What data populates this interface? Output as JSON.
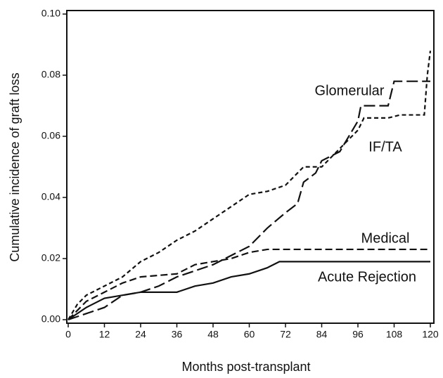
{
  "chart_data": {
    "type": "line",
    "xlabel": "Months post-transplant",
    "ylabel": "Cumulative incidence of graft loss",
    "xlim": [
      0,
      120
    ],
    "ylim": [
      0,
      0.1
    ],
    "xticks": [
      0,
      12,
      24,
      36,
      48,
      60,
      72,
      84,
      96,
      108,
      120
    ],
    "yticks": [
      {
        "value": 0,
        "label": "0.00"
      },
      {
        "value": 0.02,
        "label": "0.02"
      },
      {
        "value": 0.04,
        "label": "0.04"
      },
      {
        "value": 0.06,
        "label": "0.06"
      },
      {
        "value": 0.08,
        "label": "0.08"
      },
      {
        "value": 0.1,
        "label": "0.10"
      }
    ],
    "series": [
      {
        "name": "Glomerular",
        "color": "#111111",
        "dash": "long",
        "x": [
          0,
          6,
          12,
          18,
          24,
          30,
          36,
          42,
          48,
          54,
          60,
          66,
          72,
          76,
          78,
          82,
          84,
          90,
          96,
          97,
          106,
          108,
          120
        ],
        "values": [
          0,
          0.002,
          0.004,
          0.008,
          0.009,
          0.011,
          0.014,
          0.016,
          0.018,
          0.021,
          0.024,
          0.03,
          0.035,
          0.038,
          0.045,
          0.048,
          0.052,
          0.055,
          0.065,
          0.07,
          0.07,
          0.078,
          0.078
        ]
      },
      {
        "name": "IF/TA",
        "color": "#111111",
        "dash": "short",
        "x": [
          0,
          3,
          6,
          12,
          18,
          24,
          30,
          36,
          42,
          48,
          54,
          60,
          66,
          72,
          76,
          78,
          84,
          88,
          94,
          96,
          98,
          106,
          110,
          118,
          119,
          120
        ],
        "values": [
          0,
          0.005,
          0.008,
          0.011,
          0.014,
          0.019,
          0.022,
          0.026,
          0.029,
          0.033,
          0.037,
          0.041,
          0.042,
          0.044,
          0.048,
          0.05,
          0.05,
          0.054,
          0.06,
          0.062,
          0.066,
          0.066,
          0.067,
          0.067,
          0.08,
          0.088
        ]
      },
      {
        "name": "Medical",
        "color": "#111111",
        "dash": "medium",
        "x": [
          0,
          6,
          12,
          18,
          24,
          36,
          42,
          48,
          54,
          60,
          66,
          120
        ],
        "values": [
          0,
          0.006,
          0.009,
          0.012,
          0.014,
          0.015,
          0.018,
          0.019,
          0.02,
          0.022,
          0.023,
          0.023
        ]
      },
      {
        "name": "Acute Rejection",
        "color": "#111111",
        "dash": "solid",
        "x": [
          0,
          6,
          12,
          18,
          24,
          36,
          42,
          48,
          54,
          60,
          66,
          70,
          120
        ],
        "values": [
          0,
          0.004,
          0.007,
          0.008,
          0.009,
          0.009,
          0.011,
          0.012,
          0.014,
          0.015,
          0.017,
          0.019,
          0.019
        ]
      }
    ]
  }
}
